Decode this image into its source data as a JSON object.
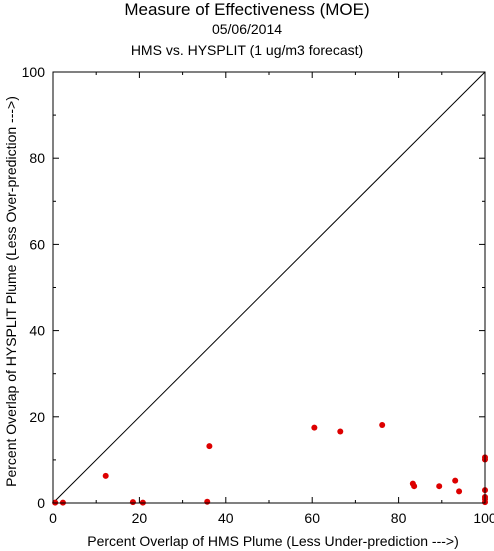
{
  "chart_data": {
    "type": "scatter",
    "title": "Measure of Effectiveness (MOE)",
    "subtitle": "05/06/2014",
    "subtitle2": "HMS vs. HYSPLIT  (1 ug/m3 forecast)",
    "xlabel": "Percent Overlap of HMS Plume (Less Under-prediction --->)",
    "ylabel": "Percent Overlap of HYSPLIT Plume (Less Over-prediction --->)",
    "xlim": [
      0,
      100
    ],
    "ylim": [
      0,
      100
    ],
    "xticks": [
      0,
      20,
      40,
      60,
      80,
      100
    ],
    "yticks": [
      0,
      20,
      40,
      60,
      80,
      100
    ],
    "reference_line": "y = x",
    "grid": false,
    "point_color": "#dd0000",
    "points": [
      {
        "x": 0.5,
        "y": 0.1
      },
      {
        "x": 2.3,
        "y": 0.1
      },
      {
        "x": 12.2,
        "y": 6.3
      },
      {
        "x": 18.5,
        "y": 0.2
      },
      {
        "x": 20.8,
        "y": 0.1
      },
      {
        "x": 35.7,
        "y": 0.3
      },
      {
        "x": 36.2,
        "y": 13.2
      },
      {
        "x": 60.5,
        "y": 17.5
      },
      {
        "x": 66.5,
        "y": 16.6
      },
      {
        "x": 76.2,
        "y": 18.1
      },
      {
        "x": 83.3,
        "y": 4.5
      },
      {
        "x": 83.6,
        "y": 3.9
      },
      {
        "x": 89.4,
        "y": 3.9
      },
      {
        "x": 93.1,
        "y": 5.2
      },
      {
        "x": 94.0,
        "y": 2.7
      },
      {
        "x": 100.0,
        "y": 10.6
      },
      {
        "x": 100.0,
        "y": 10.1
      },
      {
        "x": 100.0,
        "y": 3.0
      },
      {
        "x": 100.0,
        "y": 1.4
      },
      {
        "x": 100.0,
        "y": 0.9
      },
      {
        "x": 100.0,
        "y": 0.2
      }
    ]
  }
}
